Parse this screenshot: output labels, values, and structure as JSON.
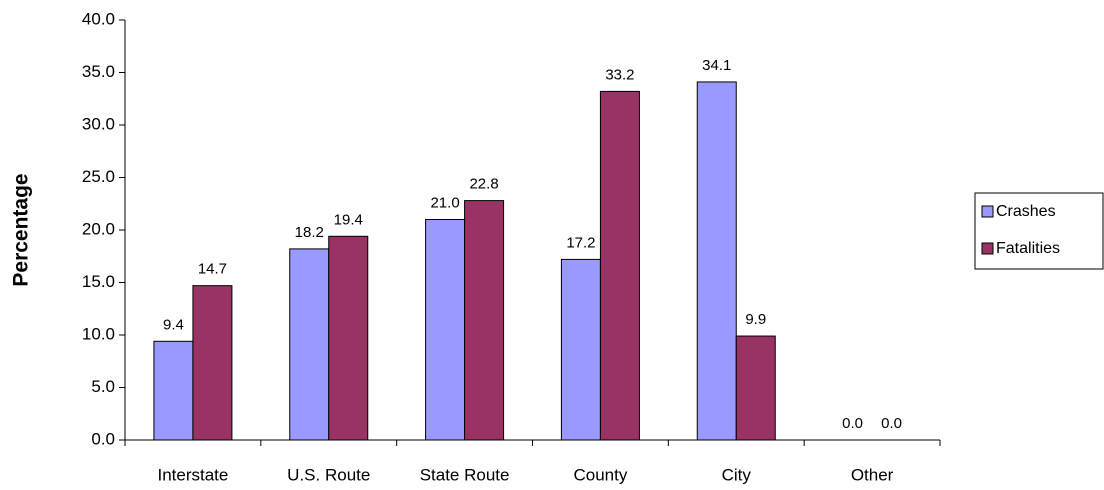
{
  "chart_data": {
    "type": "bar",
    "y_label": "Percentage",
    "categories": [
      "Interstate",
      "U.S. Route",
      "State Route",
      "County",
      "City",
      "Other"
    ],
    "series": [
      {
        "name": "Crashes",
        "color": "#9999ff",
        "values": [
          9.4,
          18.2,
          21.0,
          17.2,
          34.1,
          0.0
        ],
        "value_labels": [
          "9.4",
          "18.2",
          "21.0",
          "17.2",
          "34.1",
          "0.0"
        ]
      },
      {
        "name": "Fatalities",
        "color": "#993366",
        "values": [
          14.7,
          19.4,
          22.8,
          33.2,
          9.9,
          0.0
        ],
        "value_labels": [
          "14.7",
          "19.4",
          "22.8",
          "33.2",
          "9.9",
          "0.0"
        ]
      }
    ],
    "ylim": [
      0,
      40
    ],
    "yticks": [
      {
        "value": 0,
        "label": "0.0"
      },
      {
        "value": 5,
        "label": "5.0"
      },
      {
        "value": 10,
        "label": "10.0"
      },
      {
        "value": 15,
        "label": "15.0"
      },
      {
        "value": 20,
        "label": "20.0"
      },
      {
        "value": 25,
        "label": "25.0"
      },
      {
        "value": 30,
        "label": "30.0"
      },
      {
        "value": 35,
        "label": "35.0"
      },
      {
        "value": 40,
        "label": "40.0"
      }
    ],
    "grid": false,
    "legend": "right"
  }
}
